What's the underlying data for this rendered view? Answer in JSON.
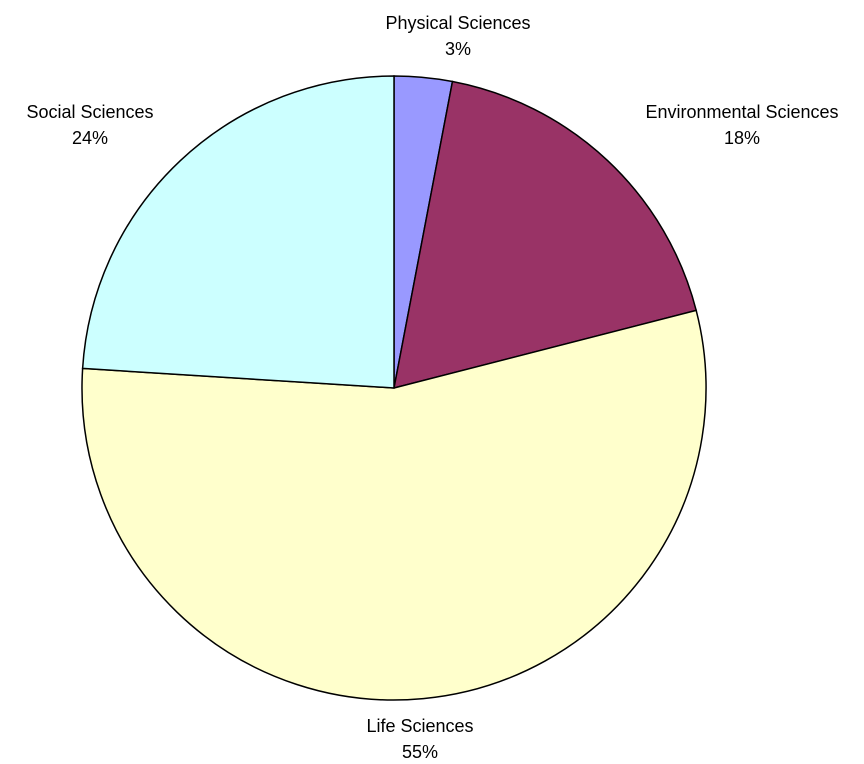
{
  "chart_data": {
    "type": "pie",
    "start_angle_deg": 0,
    "direction": "clockwise",
    "slices": [
      {
        "label": "Physical Sciences",
        "value": 3,
        "display": "3%",
        "color": "#9999ff"
      },
      {
        "label": "Environmental Sciences",
        "value": 18,
        "display": "18%",
        "color": "#993366"
      },
      {
        "label": "Life Sciences",
        "value": 55,
        "display": "55%",
        "color": "#ffffcc"
      },
      {
        "label": "Social Sciences",
        "value": 24,
        "display": "24%",
        "color": "#ccffff"
      }
    ]
  }
}
